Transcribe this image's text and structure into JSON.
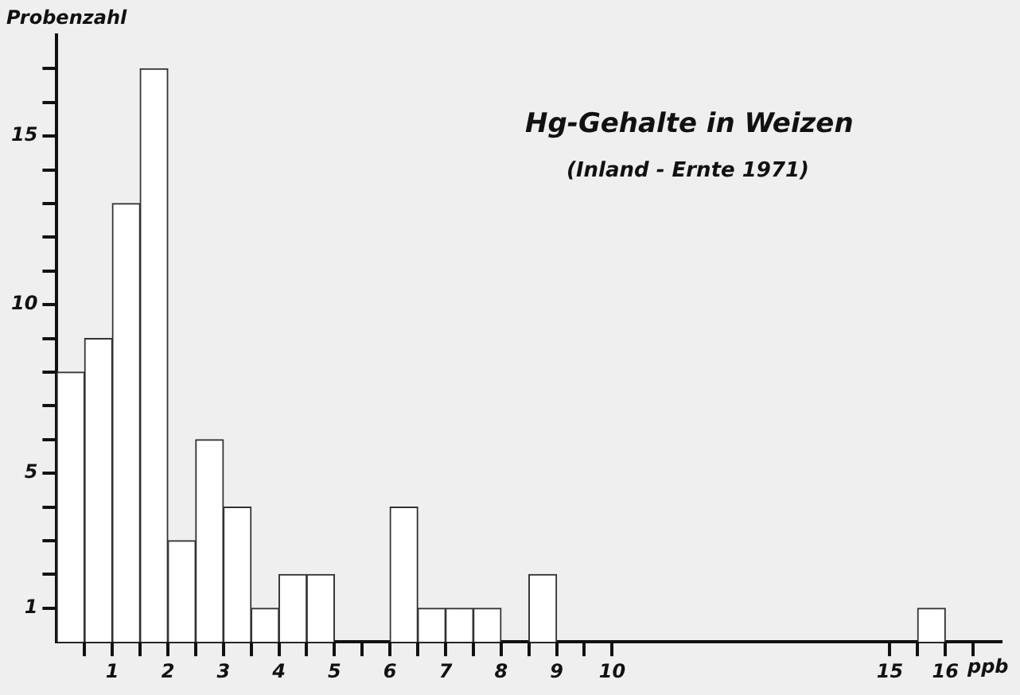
{
  "chart_data": {
    "type": "histogram",
    "title": "Hg-Gehalte in Weizen",
    "subtitle": "(Inland - Ernte 1971)",
    "xlabel": "ppb",
    "ylabel": "Probenzahl",
    "bins": [
      0,
      0.5,
      1,
      1.5,
      2,
      2.5,
      3,
      3.5,
      4,
      4.5,
      5,
      5.5,
      6,
      6.5,
      7,
      7.5,
      8,
      8.5,
      9,
      9.5,
      10,
      10.5,
      11,
      11.5,
      12,
      12.5,
      13,
      13.5,
      14,
      14.5,
      15,
      15.5,
      16
    ],
    "values": [
      8,
      9,
      13,
      17,
      3,
      6,
      4,
      1,
      2,
      2,
      0,
      0,
      4,
      1,
      1,
      1,
      0,
      2,
      0,
      0,
      0,
      0,
      0,
      0,
      0,
      0,
      0,
      0,
      0,
      0,
      0,
      1
    ],
    "color": "#ffffff",
    "xlim": [
      0,
      17
    ],
    "xticks": [
      {
        "value": 0.5,
        "label": null
      },
      1,
      {
        "value": 1.5,
        "label": null
      },
      2,
      {
        "value": 2.5,
        "label": null
      },
      3,
      {
        "value": 3.5,
        "label": null
      },
      4,
      {
        "value": 4.5,
        "label": null
      },
      5,
      {
        "value": 5.5,
        "label": null
      },
      6,
      {
        "value": 6.5,
        "label": null
      },
      7,
      {
        "value": 7.5,
        "label": null
      },
      8,
      {
        "value": 8.5,
        "label": null
      },
      9,
      {
        "value": 9.5,
        "label": null
      },
      10,
      15,
      {
        "value": 15.5,
        "label": null
      },
      16,
      {
        "value": 16.5,
        "label": null
      }
    ],
    "ylim": [
      0,
      18
    ],
    "yticks": [
      1,
      {
        "value": 2,
        "label": null
      },
      {
        "value": 3,
        "label": null
      },
      {
        "value": 4,
        "label": null
      },
      5,
      {
        "value": 6,
        "label": null
      },
      {
        "value": 7,
        "label": null
      },
      {
        "value": 8,
        "label": null
      },
      {
        "value": 9,
        "label": null
      },
      10,
      {
        "value": 11,
        "label": null
      },
      {
        "value": 12,
        "label": null
      },
      {
        "value": 13,
        "label": null
      },
      {
        "value": 14,
        "label": null
      },
      15,
      {
        "value": 16,
        "label": null
      },
      {
        "value": 17,
        "label": null
      }
    ],
    "grid": false,
    "legend": false
  }
}
